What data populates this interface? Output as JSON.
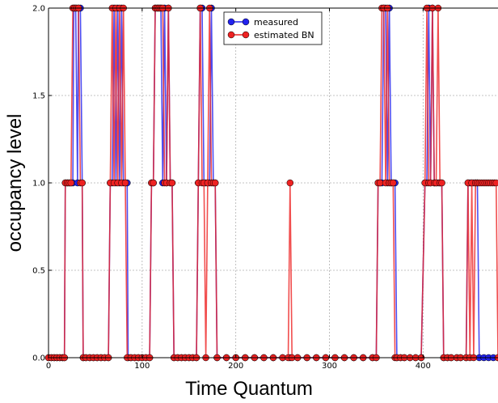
{
  "chart_data": {
    "type": "line",
    "title": "",
    "xlabel": "Time Quantum",
    "ylabel": "occupancy level",
    "xlim": [
      0,
      480
    ],
    "ylim": [
      0.0,
      2.0
    ],
    "x_ticks": [
      0,
      100,
      200,
      300,
      400
    ],
    "y_ticks": [
      0.0,
      0.5,
      1.0,
      1.5,
      2.0
    ],
    "x_tick_labels": [
      "0",
      "100",
      "200",
      "300",
      "400"
    ],
    "y_tick_labels": [
      "0.0",
      "0.5",
      "1.0",
      "1.5",
      "2.0"
    ],
    "grid": true,
    "legend_position": "top-center",
    "series": [
      {
        "name": "measured",
        "color": "#2222ee",
        "points": [
          [
            0,
            0
          ],
          [
            3,
            0
          ],
          [
            6,
            0
          ],
          [
            9,
            0
          ],
          [
            12,
            0
          ],
          [
            15,
            0
          ],
          [
            17,
            0
          ],
          [
            18,
            1
          ],
          [
            20,
            1
          ],
          [
            22,
            1
          ],
          [
            24,
            1
          ],
          [
            26,
            1
          ],
          [
            27,
            2
          ],
          [
            29,
            2
          ],
          [
            31,
            1
          ],
          [
            32,
            2
          ],
          [
            34,
            2
          ],
          [
            36,
            1
          ],
          [
            37,
            0
          ],
          [
            40,
            0
          ],
          [
            44,
            0
          ],
          [
            48,
            0
          ],
          [
            52,
            0
          ],
          [
            56,
            0
          ],
          [
            60,
            0
          ],
          [
            64,
            0
          ],
          [
            66,
            1
          ],
          [
            68,
            1
          ],
          [
            70,
            2
          ],
          [
            72,
            1
          ],
          [
            74,
            2
          ],
          [
            76,
            1
          ],
          [
            78,
            2
          ],
          [
            80,
            1
          ],
          [
            82,
            1
          ],
          [
            84,
            1
          ],
          [
            85,
            0
          ],
          [
            88,
            0
          ],
          [
            92,
            0
          ],
          [
            96,
            0
          ],
          [
            100,
            0
          ],
          [
            104,
            0
          ],
          [
            108,
            0
          ],
          [
            110,
            1
          ],
          [
            112,
            1
          ],
          [
            114,
            2
          ],
          [
            116,
            2
          ],
          [
            118,
            2
          ],
          [
            120,
            2
          ],
          [
            122,
            1
          ],
          [
            124,
            2
          ],
          [
            126,
            1
          ],
          [
            128,
            2
          ],
          [
            130,
            1
          ],
          [
            132,
            1
          ],
          [
            134,
            0
          ],
          [
            138,
            0
          ],
          [
            142,
            0
          ],
          [
            146,
            0
          ],
          [
            150,
            0
          ],
          [
            154,
            0
          ],
          [
            158,
            0
          ],
          [
            160,
            1
          ],
          [
            162,
            2
          ],
          [
            164,
            2
          ],
          [
            166,
            1
          ],
          [
            168,
            1
          ],
          [
            170,
            1
          ],
          [
            172,
            1
          ],
          [
            174,
            2
          ],
          [
            176,
            1
          ],
          [
            178,
            1
          ],
          [
            180,
            0
          ],
          [
            190,
            0
          ],
          [
            200,
            0
          ],
          [
            210,
            0
          ],
          [
            220,
            0
          ],
          [
            230,
            0
          ],
          [
            240,
            0
          ],
          [
            250,
            0
          ],
          [
            258,
            0
          ],
          [
            266,
            0
          ],
          [
            276,
            0
          ],
          [
            286,
            0
          ],
          [
            296,
            0
          ],
          [
            306,
            0
          ],
          [
            316,
            0
          ],
          [
            326,
            0
          ],
          [
            336,
            0
          ],
          [
            346,
            0
          ],
          [
            350,
            0
          ],
          [
            352,
            1
          ],
          [
            354,
            1
          ],
          [
            356,
            1
          ],
          [
            358,
            2
          ],
          [
            360,
            2
          ],
          [
            362,
            1
          ],
          [
            364,
            2
          ],
          [
            366,
            1
          ],
          [
            368,
            1
          ],
          [
            370,
            1
          ],
          [
            372,
            0
          ],
          [
            376,
            0
          ],
          [
            380,
            0
          ],
          [
            386,
            0
          ],
          [
            392,
            0
          ],
          [
            398,
            0
          ],
          [
            402,
            1
          ],
          [
            404,
            1
          ],
          [
            406,
            2
          ],
          [
            408,
            1
          ],
          [
            410,
            2
          ],
          [
            412,
            1
          ],
          [
            414,
            1
          ],
          [
            416,
            1
          ],
          [
            418,
            1
          ],
          [
            420,
            1
          ],
          [
            422,
            0
          ],
          [
            426,
            0
          ],
          [
            430,
            0
          ],
          [
            436,
            0
          ],
          [
            440,
            0
          ],
          [
            446,
            0
          ],
          [
            448,
            1
          ],
          [
            450,
            1
          ],
          [
            452,
            1
          ],
          [
            454,
            1
          ],
          [
            456,
            1
          ],
          [
            458,
            1
          ],
          [
            460,
            0
          ],
          [
            465,
            0
          ],
          [
            470,
            0
          ],
          [
            475,
            0
          ],
          [
            480,
            0
          ]
        ]
      },
      {
        "name": "estimated BN",
        "color": "#ee2222",
        "points": [
          [
            0,
            0
          ],
          [
            3,
            0
          ],
          [
            6,
            0
          ],
          [
            9,
            0
          ],
          [
            12,
            0
          ],
          [
            15,
            0
          ],
          [
            17,
            0
          ],
          [
            18,
            1
          ],
          [
            20,
            1
          ],
          [
            22,
            1
          ],
          [
            24,
            1
          ],
          [
            26,
            2
          ],
          [
            28,
            2
          ],
          [
            30,
            2
          ],
          [
            32,
            2
          ],
          [
            34,
            1
          ],
          [
            36,
            1
          ],
          [
            37,
            0
          ],
          [
            40,
            0
          ],
          [
            44,
            0
          ],
          [
            48,
            0
          ],
          [
            52,
            0
          ],
          [
            56,
            0
          ],
          [
            60,
            0
          ],
          [
            64,
            0
          ],
          [
            66,
            1
          ],
          [
            68,
            2
          ],
          [
            70,
            1
          ],
          [
            72,
            2
          ],
          [
            74,
            1
          ],
          [
            76,
            2
          ],
          [
            78,
            1
          ],
          [
            80,
            2
          ],
          [
            82,
            1
          ],
          [
            84,
            0
          ],
          [
            88,
            0
          ],
          [
            92,
            0
          ],
          [
            96,
            0
          ],
          [
            100,
            0
          ],
          [
            104,
            0
          ],
          [
            108,
            0
          ],
          [
            110,
            1
          ],
          [
            112,
            1
          ],
          [
            114,
            2
          ],
          [
            116,
            2
          ],
          [
            118,
            2
          ],
          [
            120,
            2
          ],
          [
            122,
            2
          ],
          [
            124,
            1
          ],
          [
            126,
            1
          ],
          [
            128,
            2
          ],
          [
            130,
            1
          ],
          [
            132,
            1
          ],
          [
            134,
            0
          ],
          [
            138,
            0
          ],
          [
            142,
            0
          ],
          [
            146,
            0
          ],
          [
            150,
            0
          ],
          [
            154,
            0
          ],
          [
            158,
            0
          ],
          [
            160,
            1
          ],
          [
            162,
            2
          ],
          [
            164,
            1
          ],
          [
            166,
            1
          ],
          [
            168,
            0
          ],
          [
            170,
            1
          ],
          [
            172,
            2
          ],
          [
            174,
            1
          ],
          [
            176,
            1
          ],
          [
            178,
            1
          ],
          [
            180,
            0
          ],
          [
            190,
            0
          ],
          [
            200,
            0
          ],
          [
            210,
            0
          ],
          [
            220,
            0
          ],
          [
            230,
            0
          ],
          [
            240,
            0
          ],
          [
            250,
            0
          ],
          [
            256,
            0
          ],
          [
            258,
            1
          ],
          [
            260,
            0
          ],
          [
            266,
            0
          ],
          [
            276,
            0
          ],
          [
            286,
            0
          ],
          [
            296,
            0
          ],
          [
            306,
            0
          ],
          [
            316,
            0
          ],
          [
            326,
            0
          ],
          [
            336,
            0
          ],
          [
            346,
            0
          ],
          [
            350,
            0
          ],
          [
            352,
            1
          ],
          [
            354,
            1
          ],
          [
            356,
            2
          ],
          [
            358,
            2
          ],
          [
            360,
            1
          ],
          [
            362,
            2
          ],
          [
            364,
            1
          ],
          [
            366,
            1
          ],
          [
            368,
            1
          ],
          [
            370,
            0
          ],
          [
            372,
            0
          ],
          [
            376,
            0
          ],
          [
            380,
            0
          ],
          [
            386,
            0
          ],
          [
            392,
            0
          ],
          [
            398,
            0
          ],
          [
            402,
            1
          ],
          [
            404,
            2
          ],
          [
            406,
            1
          ],
          [
            408,
            1
          ],
          [
            410,
            2
          ],
          [
            412,
            1
          ],
          [
            414,
            1
          ],
          [
            416,
            2
          ],
          [
            418,
            1
          ],
          [
            420,
            1
          ],
          [
            422,
            0
          ],
          [
            426,
            0
          ],
          [
            430,
            0
          ],
          [
            436,
            0
          ],
          [
            440,
            0
          ],
          [
            446,
            0
          ],
          [
            448,
            1
          ],
          [
            450,
            0
          ],
          [
            452,
            1
          ],
          [
            454,
            0
          ],
          [
            456,
            1
          ],
          [
            458,
            1
          ],
          [
            460,
            1
          ],
          [
            462,
            1
          ],
          [
            464,
            1
          ],
          [
            466,
            1
          ],
          [
            468,
            1
          ],
          [
            470,
            1
          ],
          [
            472,
            1
          ],
          [
            474,
            1
          ],
          [
            476,
            1
          ],
          [
            478,
            1
          ],
          [
            480,
            0
          ]
        ]
      }
    ]
  }
}
